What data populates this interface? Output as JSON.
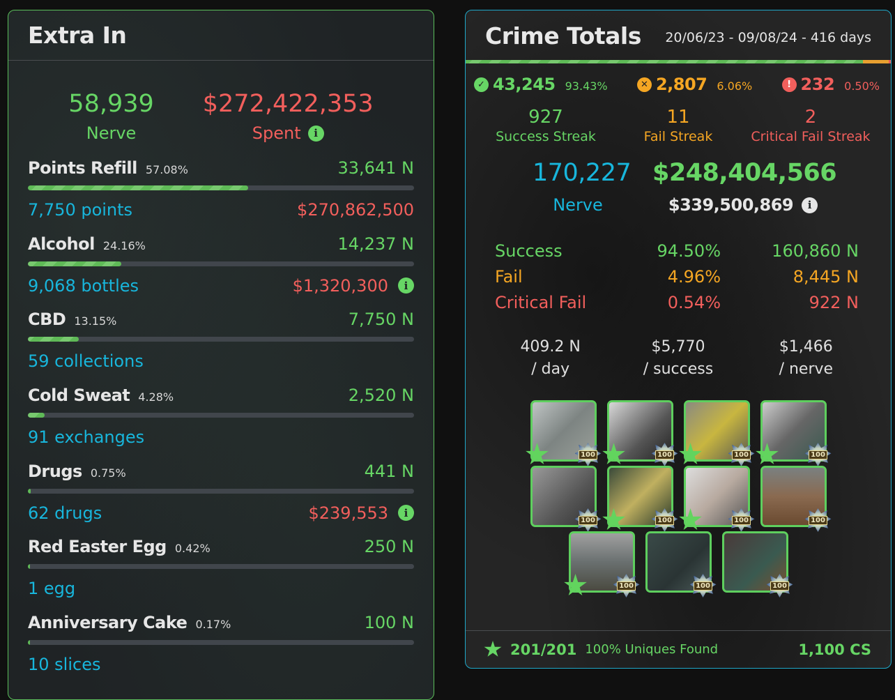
{
  "extra_in": {
    "title": "Extra In",
    "nerve_value": "58,939",
    "nerve_label": "Nerve",
    "spent_value": "$272,422,353",
    "spent_label": "Spent",
    "items": [
      {
        "name": "Points Refill",
        "pct": "57.08%",
        "fill": 57.08,
        "nerve": "33,641 N",
        "qty": "7,750 points",
        "cost": "$270,862,500",
        "info": false
      },
      {
        "name": "Alcohol",
        "pct": "24.16%",
        "fill": 24.16,
        "nerve": "14,237 N",
        "qty": "9,068 bottles",
        "cost": "$1,320,300",
        "info": true
      },
      {
        "name": "CBD",
        "pct": "13.15%",
        "fill": 13.15,
        "nerve": "7,750 N",
        "qty": "59 collections",
        "cost": "",
        "info": false
      },
      {
        "name": "Cold Sweat",
        "pct": "4.28%",
        "fill": 4.28,
        "nerve": "2,520 N",
        "qty": "91 exchanges",
        "cost": "",
        "info": false
      },
      {
        "name": "Drugs",
        "pct": "0.75%",
        "fill": 0.75,
        "nerve": "441 N",
        "qty": "62 drugs",
        "cost": "$239,553",
        "info": true
      },
      {
        "name": "Red Easter Egg",
        "pct": "0.42%",
        "fill": 0.42,
        "nerve": "250 N",
        "qty": "1 egg",
        "cost": "",
        "info": false
      },
      {
        "name": "Anniversary Cake",
        "pct": "0.17%",
        "fill": 0.17,
        "nerve": "100 N",
        "qty": "10 slices",
        "cost": "",
        "info": false
      }
    ]
  },
  "crime_totals": {
    "title": "Crime Totals",
    "date_range": "20/06/23 - 09/08/24 - 416 days",
    "ratio": {
      "success": 93.43,
      "fail": 6.06,
      "critical": 0.5
    },
    "counts": {
      "success": {
        "value": "43,245",
        "pct": "93.43%",
        "icon": "check-circle-icon"
      },
      "fail": {
        "value": "2,807",
        "pct": "6.06%",
        "icon": "x-circle-icon"
      },
      "critical": {
        "value": "232",
        "pct": "0.50%",
        "icon": "exclamation-circle-icon"
      }
    },
    "streaks": {
      "success": {
        "value": "927",
        "label": "Success Streak"
      },
      "fail": {
        "value": "11",
        "label": "Fail Streak"
      },
      "critical": {
        "value": "2",
        "label": "Critical Fail Streak"
      }
    },
    "nerve_total": "170,227",
    "nerve_label": "Nerve",
    "money_net": "$248,404,566",
    "money_gross": "$339,500,869",
    "rates": [
      {
        "name": "Success",
        "pct": "94.50%",
        "nerve": "160,860 N"
      },
      {
        "name": "Fail",
        "pct": "4.96%",
        "nerve": "8,445 N"
      },
      {
        "name": "Critical Fail",
        "pct": "0.54%",
        "nerve": "922 N"
      }
    ],
    "per": [
      {
        "value": "409.2 N",
        "label": "/ day"
      },
      {
        "value": "$5,770",
        "label": "/ success"
      },
      {
        "value": "$1,466",
        "label": "/ nerve"
      }
    ],
    "tiles": [
      {
        "badge": "100",
        "star": true,
        "bg": "linear-gradient(135deg,#bfc4c4,#7d8482 50%,#9aa09a)"
      },
      {
        "badge": "100",
        "star": true,
        "bg": "linear-gradient(135deg,#d8d8d8,#555 60%,#222)"
      },
      {
        "badge": "100",
        "star": true,
        "bg": "linear-gradient(135deg,#8a8a80,#c8b640 50%,#5a5a50)"
      },
      {
        "badge": "100",
        "star": true,
        "bg": "linear-gradient(135deg,#ccc,#666 50%,#3a5a50)"
      },
      {
        "badge": "100",
        "star": false,
        "bg": "linear-gradient(135deg,#999,#555 60%,#333)"
      },
      {
        "badge": "100",
        "star": true,
        "bg": "linear-gradient(135deg,#3a4a3a,#c0b060 50%,#2a3a2a)"
      },
      {
        "badge": "100",
        "star": true,
        "bg": "linear-gradient(135deg,#ddd,#b8aaa0 50%,#555)"
      },
      {
        "badge": "100",
        "star": false,
        "bg": "linear-gradient(180deg,#7a8080,#8a6a50 50%,#6a4a30)"
      },
      {
        "badge": "100",
        "star": true,
        "bg": "linear-gradient(180deg,#a0a0a0,#6a7070 50%,#4a4a40)"
      },
      {
        "badge": "100",
        "star": false,
        "bg": "linear-gradient(135deg,#3a4a48,#2a3434 60%,#4a5a58)"
      },
      {
        "badge": "100",
        "star": false,
        "bg": "linear-gradient(135deg,#4a3a3a,#3a5a50 60%,#7a5030)"
      }
    ],
    "footer": {
      "count": "201/201",
      "label": "100% Uniques Found",
      "cs": "1,100 CS"
    }
  },
  "colors": {
    "green": "#67d665",
    "red": "#f25f5c",
    "cyan": "#18b6dc",
    "orange": "#f5a623",
    "extra_border": "#5bbf5b",
    "crime_border": "#1fa8c9"
  }
}
